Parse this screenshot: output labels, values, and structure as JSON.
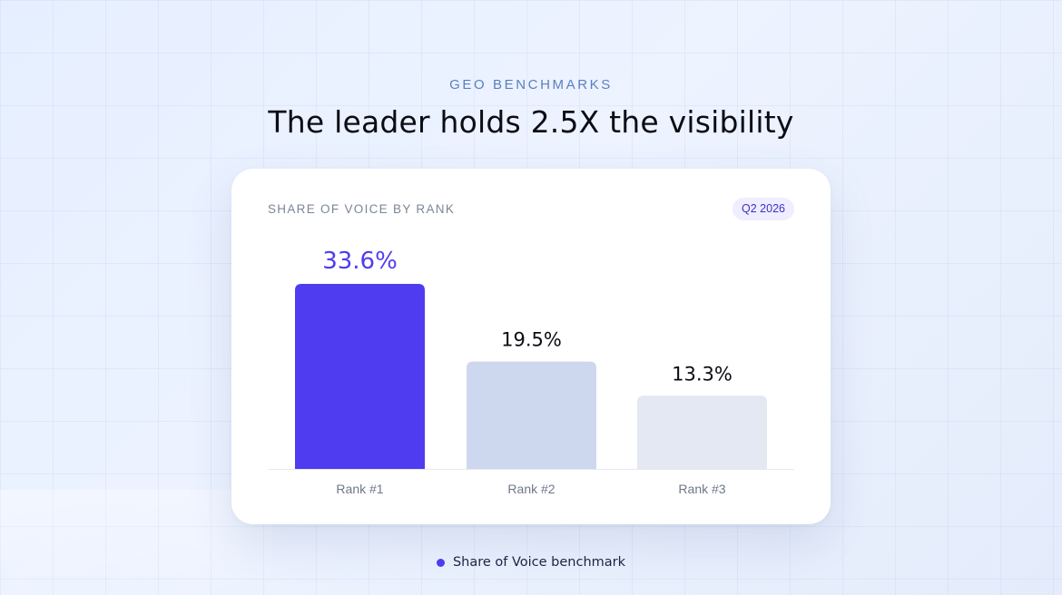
{
  "header": {
    "eyebrow": "GEO BENCHMARKS",
    "headline": "The leader holds 2.5X the visibility"
  },
  "card": {
    "title": "SHARE OF VOICE BY RANK",
    "badge": "Q2 2026"
  },
  "legend": {
    "label": "Share of Voice benchmark",
    "dot_color": "#4f3cf0"
  },
  "colors": {
    "accent": "#4f3cf0",
    "bar_secondary": "#cdd8ef",
    "bar_tertiary": "#e3e8f3",
    "value_dark": "#0c0c14",
    "axis_label": "#6e778a",
    "baseline": "#e6e9f0"
  },
  "chart_data": {
    "type": "bar",
    "title": "SHARE OF VOICE BY RANK",
    "categories": [
      "Rank #1",
      "Rank #2",
      "Rank #3"
    ],
    "values": [
      33.6,
      19.5,
      13.3
    ],
    "value_labels": [
      "33.6%",
      "19.5%",
      "13.3%"
    ],
    "bar_colors": [
      "#4f3cf0",
      "#cdd8ef",
      "#e3e8f3"
    ],
    "label_colors": [
      "#4f3cf0",
      "#0c0c14",
      "#0c0c14"
    ],
    "ylim": [
      0,
      33.6
    ],
    "grid": false,
    "legend_position": "bottom-center",
    "legend": [
      "Share of Voice benchmark"
    ]
  }
}
